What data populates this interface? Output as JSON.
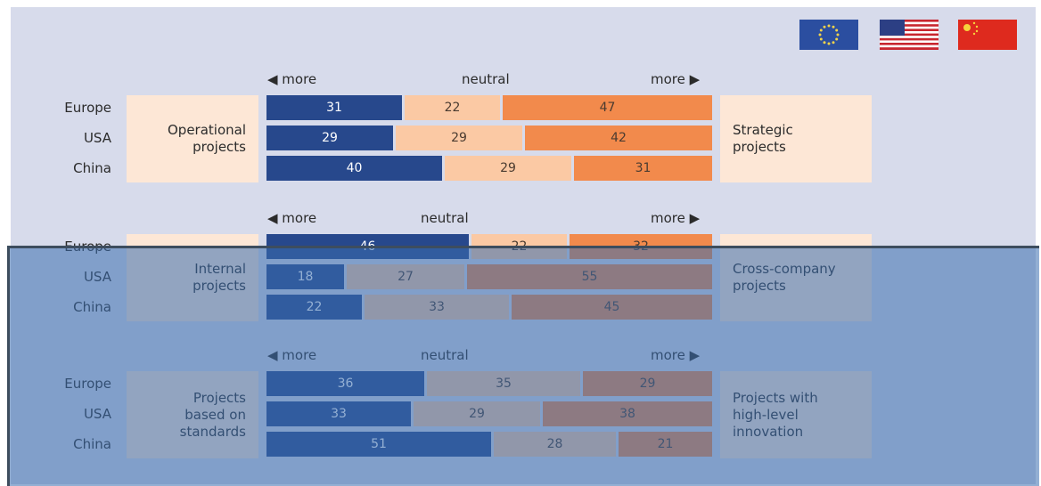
{
  "flags": [
    "eu-flag-icon",
    "us-flag-icon",
    "china-flag-icon"
  ],
  "colors": {
    "more_left": "#27488c",
    "neutral": "#fbc9a4",
    "more_right": "#f28a4c",
    "box": "#fde7d6",
    "overlay": "#3a6eaf"
  },
  "axis": {
    "left": "◀ more",
    "neutral": "neutral",
    "right": "more ▶"
  },
  "chart_data": [
    {
      "type": "bar",
      "stacked": true,
      "orientation": "horizontal",
      "categories": [
        "Europe",
        "USA",
        "China"
      ],
      "left_label": "Operational\nprojects",
      "right_label": "Strategic\nprojects",
      "series": [
        {
          "values": [
            31,
            29,
            40
          ]
        },
        {
          "values": [
            22,
            29,
            29
          ]
        },
        {
          "values": [
            47,
            42,
            31
          ]
        }
      ]
    },
    {
      "type": "bar",
      "stacked": true,
      "orientation": "horizontal",
      "categories": [
        "Europe",
        "USA",
        "China"
      ],
      "left_label": "Internal\nprojects",
      "right_label": "Cross-company\nprojects",
      "series": [
        {
          "values": [
            46,
            18,
            22
          ]
        },
        {
          "values": [
            22,
            27,
            33
          ]
        },
        {
          "values": [
            32,
            55,
            45
          ]
        }
      ]
    },
    {
      "type": "bar",
      "stacked": true,
      "orientation": "horizontal",
      "categories": [
        "Europe",
        "USA",
        "China"
      ],
      "left_label": "Projects\nbased on\nstandards",
      "right_label": "Projects with\nhigh-level\ninnovation",
      "series": [
        {
          "values": [
            36,
            33,
            51
          ]
        },
        {
          "values": [
            35,
            29,
            28
          ]
        },
        {
          "values": [
            29,
            38,
            21
          ]
        }
      ]
    }
  ]
}
